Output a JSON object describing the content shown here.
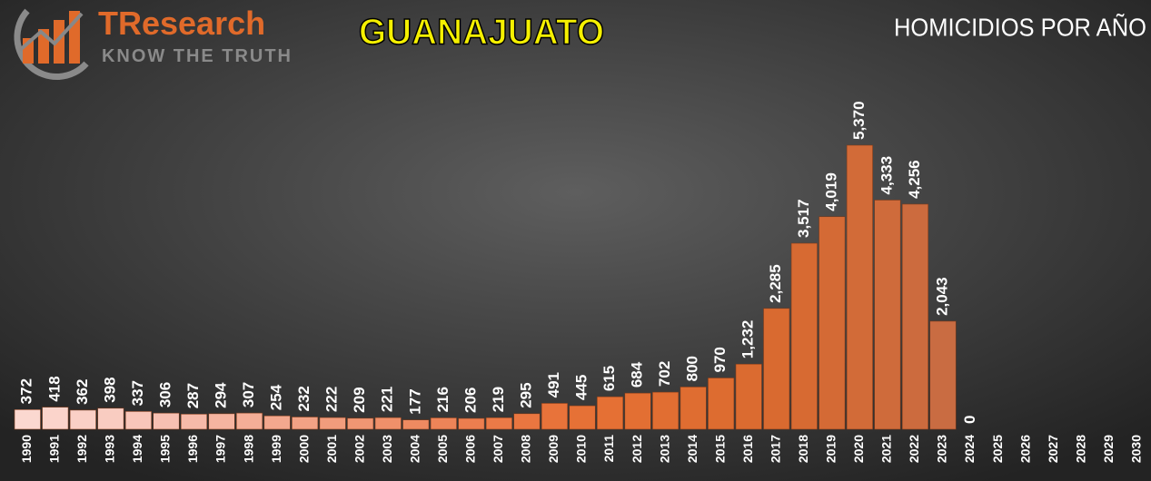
{
  "logo": {
    "name": "TResearch",
    "tagline": "KNOW THE TRUTH"
  },
  "chart_data": {
    "type": "bar",
    "title": "GUANAJUATO",
    "subtitle": "HOMICIDIOS POR AÑO",
    "categories": [
      "1990",
      "1991",
      "1992",
      "1993",
      "1994",
      "1995",
      "1996",
      "1997",
      "1998",
      "1999",
      "2000",
      "2001",
      "2002",
      "2003",
      "2004",
      "2005",
      "2006",
      "2007",
      "2008",
      "2009",
      "2010",
      "2011",
      "2012",
      "2013",
      "2014",
      "2015",
      "2016",
      "2017",
      "2018",
      "2019",
      "2020",
      "2021",
      "2022",
      "2023",
      "2024",
      "2025",
      "2026",
      "2027",
      "2028",
      "2029",
      "2030"
    ],
    "values": [
      372,
      418,
      362,
      398,
      337,
      306,
      287,
      294,
      307,
      254,
      232,
      222,
      209,
      221,
      177,
      216,
      206,
      219,
      295,
      491,
      445,
      615,
      684,
      702,
      800,
      970,
      1232,
      2285,
      3517,
      4019,
      5370,
      4333,
      4256,
      2043,
      0,
      null,
      null,
      null,
      null,
      null,
      null
    ],
    "value_labels": [
      "372",
      "418",
      "362",
      "398",
      "337",
      "306",
      "287",
      "294",
      "307",
      "254",
      "232",
      "222",
      "209",
      "221",
      "177",
      "216",
      "206",
      "219",
      "295",
      "491",
      "445",
      "615",
      "684",
      "702",
      "800",
      "970",
      "1,232",
      "2,285",
      "3,517",
      "4,019",
      "5,370",
      "4,333",
      "4,256",
      "2,043",
      "0",
      null,
      null,
      null,
      null,
      null,
      null
    ],
    "colors": [
      "#fbd8d0",
      "#fbd4cb",
      "#fad0c6",
      "#f9ccc1",
      "#f8c6ba",
      "#f7c0b2",
      "#f6baa9",
      "#f5b4a0",
      "#f4ae97",
      "#f3a88e",
      "#f2a285",
      "#f19c7c",
      "#f09673",
      "#ef906a",
      "#ee8a61",
      "#ed8458",
      "#ec7e4f",
      "#eb7a47",
      "#ea7640",
      "#e8733a",
      "#e67136",
      "#e57034",
      "#e36f33",
      "#e16e32",
      "#df6d31",
      "#dd6c30",
      "#db6b30",
      "#d96a30",
      "#d76a32",
      "#d46a35",
      "#d26b38",
      "#cf6b3b",
      "#cc6b3e",
      "#c96c42",
      "#f2e2dc",
      null,
      null,
      null,
      null,
      null,
      null
    ]
  }
}
